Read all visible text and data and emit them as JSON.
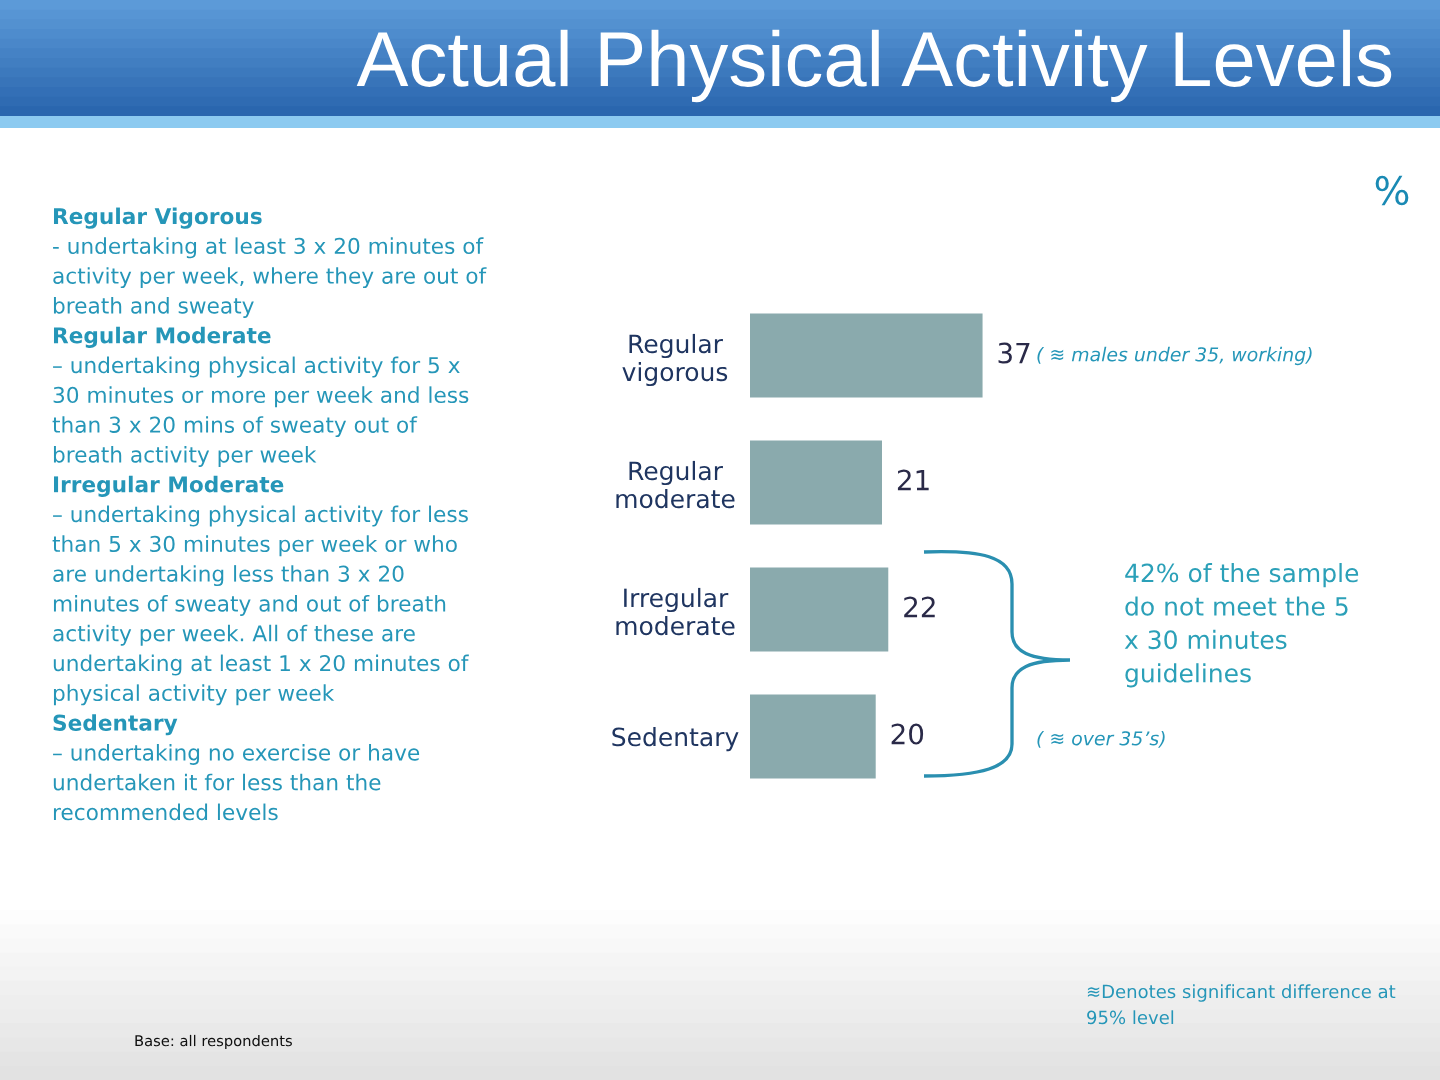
{
  "chart_data": {
    "type": "bar",
    "orientation": "horizontal",
    "title": "Actual Physical Activity Levels",
    "categories": [
      "Regular\nvigorous",
      "Regular\nmoderate",
      "Irregular\nmoderate",
      "Sedentary"
    ],
    "values": [
      37,
      21,
      22,
      20
    ],
    "color": "#8aaaad",
    "data_labels": true,
    "annotations": [
      "%",
      "Regular Vigorous",
      "- undertaking at least 3 x 20 minutes of activity per week, where they are out of breath and sweaty",
      "Regular Moderate",
      "– undertaking physical activity for 5 x 30 minutes or more per week and less than 3 x 20 mins of sweaty out of breath activity per week",
      "Irregular Moderate",
      "– undertaking physical activity for less than 5 x 30 minutes per week or who are undertaking less than 3 x 20 minutes of sweaty and out of breath activity per week. All of these are undertaking at least 1 x 20 minutes of physical activity per week",
      "Sedentary",
      "– undertaking no exercise or have undertaken it for less than the recommended levels",
      "( ≋ males under 35, working)",
      "42% of the sample do not meet the 5 x 30 minutes guidelines",
      "( ≋ over 35’s)",
      "≋Denotes significant difference at 95% level",
      "Base: all respondents"
    ]
  }
}
